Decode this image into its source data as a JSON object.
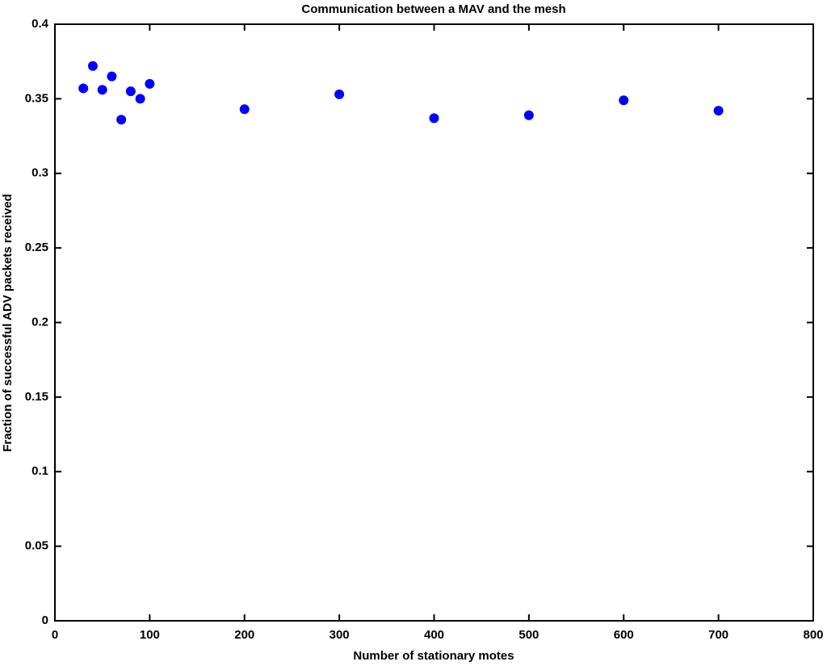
{
  "chart_data": {
    "type": "scatter",
    "title": "Communication between a MAV and the mesh",
    "x_label": "Number of stationary motes",
    "y_label": "Fraction of successful ADV packets received",
    "series": [
      {
        "color": "#0000ff",
        "x": [
          30,
          40,
          50,
          60,
          70,
          80,
          90,
          100,
          200,
          300,
          400,
          500,
          600,
          700
        ],
        "values": [
          0.357,
          0.372,
          0.356,
          0.365,
          0.336,
          0.355,
          0.35,
          0.36,
          0.343,
          0.353,
          0.337,
          0.339,
          0.349,
          0.342
        ]
      }
    ],
    "xlim": [
      0,
      800
    ],
    "xticks": [
      0,
      100,
      200,
      300,
      400,
      500,
      600,
      700,
      800
    ],
    "ylim": [
      0,
      0.4
    ],
    "yticks": [
      0,
      0.05,
      0.1,
      0.15,
      0.2,
      0.25,
      0.3,
      0.35,
      0.4
    ],
    "grid": false
  }
}
